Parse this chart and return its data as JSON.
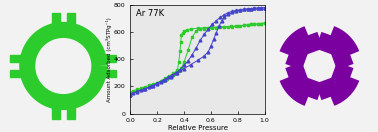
{
  "bg_color": "#f2f2f2",
  "green_color": "#2dcc2d",
  "purple_color": "#7b00a0",
  "blue_color": "#4444cc",
  "plot_bg": "#e8e8e8",
  "title_text": "Ar 77K",
  "xlabel": "Relative Pressure",
  "ylabel": "Amount Adsorbed (cm³STPg⁻¹)",
  "xlim": [
    0.0,
    1.0
  ],
  "ylim": [
    0,
    800
  ],
  "yticks": [
    0,
    200,
    400,
    600,
    800
  ],
  "xticks": [
    0.0,
    0.2,
    0.4,
    0.6,
    0.8,
    1.0
  ],
  "green_ads_x": [
    0.0,
    0.02,
    0.05,
    0.08,
    0.11,
    0.14,
    0.17,
    0.2,
    0.23,
    0.26,
    0.29,
    0.32,
    0.35,
    0.36,
    0.37,
    0.375,
    0.38,
    0.39,
    0.4,
    0.42,
    0.45,
    0.5,
    0.55,
    0.6,
    0.65,
    0.7,
    0.75,
    0.8,
    0.85,
    0.88,
    0.9,
    0.92,
    0.95,
    0.97,
    1.0
  ],
  "green_ads_y": [
    155,
    168,
    178,
    188,
    198,
    208,
    218,
    228,
    243,
    260,
    278,
    298,
    318,
    380,
    460,
    530,
    580,
    598,
    610,
    618,
    625,
    630,
    635,
    638,
    640,
    642,
    644,
    647,
    651,
    655,
    658,
    660,
    663,
    665,
    668
  ],
  "green_des_x": [
    1.0,
    0.97,
    0.95,
    0.92,
    0.9,
    0.88,
    0.85,
    0.82,
    0.79,
    0.76,
    0.73,
    0.7,
    0.67,
    0.64,
    0.61,
    0.58,
    0.55,
    0.52,
    0.49,
    0.46,
    0.43,
    0.4,
    0.38,
    0.36,
    0.34,
    0.32,
    0.3,
    0.27,
    0.24,
    0.2,
    0.15,
    0.1,
    0.05,
    0.0
  ],
  "green_des_y": [
    668,
    665,
    663,
    660,
    658,
    655,
    652,
    649,
    646,
    643,
    640,
    638,
    636,
    634,
    632,
    630,
    628,
    622,
    610,
    565,
    470,
    380,
    335,
    312,
    298,
    285,
    272,
    258,
    240,
    220,
    200,
    185,
    170,
    155
  ],
  "purple_ads_x": [
    0.0,
    0.02,
    0.05,
    0.08,
    0.11,
    0.14,
    0.17,
    0.2,
    0.23,
    0.26,
    0.3,
    0.35,
    0.4,
    0.45,
    0.5,
    0.55,
    0.58,
    0.6,
    0.62,
    0.64,
    0.66,
    0.68,
    0.7,
    0.73,
    0.76,
    0.79,
    0.82,
    0.85,
    0.88,
    0.9,
    0.92,
    0.95,
    0.97,
    1.0
  ],
  "purple_ads_y": [
    140,
    153,
    163,
    173,
    183,
    193,
    205,
    218,
    232,
    248,
    270,
    300,
    332,
    362,
    392,
    425,
    458,
    498,
    548,
    598,
    645,
    685,
    715,
    732,
    748,
    758,
    765,
    770,
    774,
    776,
    778,
    779,
    780,
    781
  ],
  "purple_des_x": [
    1.0,
    0.97,
    0.95,
    0.92,
    0.9,
    0.88,
    0.85,
    0.82,
    0.79,
    0.76,
    0.73,
    0.7,
    0.67,
    0.64,
    0.61,
    0.58,
    0.55,
    0.52,
    0.49,
    0.46,
    0.43,
    0.4,
    0.37,
    0.34,
    0.31,
    0.28,
    0.25,
    0.2,
    0.15,
    0.1,
    0.05,
    0.0
  ],
  "purple_des_y": [
    781,
    780,
    779,
    778,
    776,
    774,
    771,
    768,
    763,
    756,
    746,
    731,
    711,
    686,
    658,
    625,
    585,
    540,
    485,
    435,
    390,
    355,
    325,
    302,
    284,
    267,
    250,
    224,
    200,
    180,
    162,
    140
  ]
}
